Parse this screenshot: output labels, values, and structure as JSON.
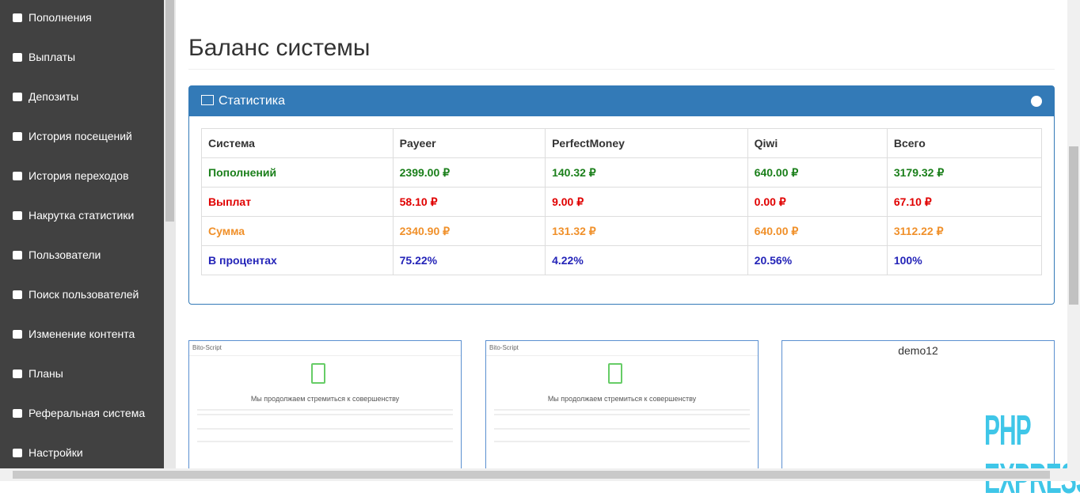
{
  "sidebar": {
    "items": [
      "Пополнения",
      "Выплаты",
      "Депозиты",
      "История посещений",
      "История переходов",
      "Накрутка статистики",
      "Пользователи",
      "Поиск пользователей",
      "Изменение контента",
      "Планы",
      "Реферальная система",
      "Настройки"
    ]
  },
  "page": {
    "title": "Баланс системы"
  },
  "panel": {
    "title": "Статистика",
    "table": {
      "header": [
        "Система",
        "Payeer",
        "PerfectMoney",
        "Qiwi",
        "Всего"
      ],
      "rows": [
        [
          "Пополнений",
          "2399.00 ₽",
          "140.32 ₽",
          "640.00 ₽",
          "3179.32 ₽"
        ],
        [
          "Выплат",
          "58.10 ₽",
          "9.00 ₽",
          "0.00 ₽",
          "67.10 ₽"
        ],
        [
          "Сумма",
          "2340.90 ₽",
          "131.32 ₽",
          "640.00 ₽",
          "3112.22 ₽"
        ],
        [
          "В процентах",
          "75.22%",
          "4.22%",
          "20.56%",
          "100%"
        ]
      ]
    }
  },
  "thumbnails": [
    {
      "brand": "Bito-Script",
      "headline": "Мы продолжаем стремиться к совершенству"
    },
    {
      "brand": "Bito-Script",
      "headline": "Мы продолжаем стремиться к совершенству"
    },
    {
      "alt": "demo12"
    }
  ],
  "watermark": "PHP EXPRESS"
}
